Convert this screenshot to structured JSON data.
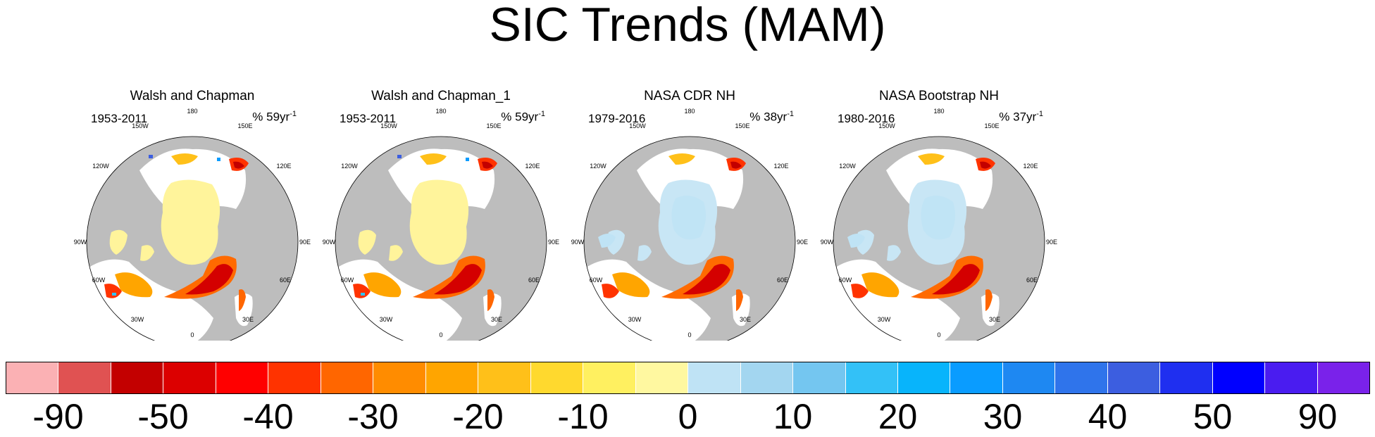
{
  "title": "SIC Trends (MAM)",
  "panels": [
    {
      "name": "Walsh and Chapman",
      "years": "1953-2011",
      "unit_prefix": "% 59yr",
      "unit_exp": "-1",
      "variant": "wc"
    },
    {
      "name": "Walsh and Chapman_1",
      "years": "1953-2011",
      "unit_prefix": "% 59yr",
      "unit_exp": "-1",
      "variant": "wc"
    },
    {
      "name": "NASA CDR NH",
      "years": "1979-2016",
      "unit_prefix": "% 38yr",
      "unit_exp": "-1",
      "variant": "sat"
    },
    {
      "name": "NASA Bootstrap NH",
      "years": "1980-2016",
      "unit_prefix": "% 37yr",
      "unit_exp": "-1",
      "variant": "sat"
    }
  ],
  "map_labels": {
    "lon_180": "180",
    "lon_150w": "150W",
    "lon_150e": "150E",
    "lon_120w": "120W",
    "lon_120e": "120E",
    "lon_90w": "90W",
    "lon_90e": "90E",
    "lon_60w": "60W",
    "lon_60e": "60E",
    "lon_30w": "30W",
    "lon_30e": "30E",
    "lon_0": "0"
  },
  "colorbar": {
    "colors": [
      "#fbb1b4",
      "#e05252",
      "#c30000",
      "#dc0000",
      "#ff0000",
      "#ff3300",
      "#ff6600",
      "#ff8c00",
      "#ffa500",
      "#ffc019",
      "#ffd92e",
      "#fff060",
      "#fff8a0",
      "#bfe3f5",
      "#a3d6f0",
      "#74c6f0",
      "#33c1f7",
      "#08b4fb",
      "#0a9cff",
      "#1e88f2",
      "#2f74eb",
      "#3c5ee0",
      "#1f2ff0",
      "#0000ff",
      "#4a1cf0",
      "#7a22ea"
    ],
    "labels": [
      "-90",
      "-50",
      "-40",
      "-30",
      "-20",
      "-10",
      "0",
      "10",
      "20",
      "30",
      "40",
      "50",
      "90"
    ]
  },
  "colors": {
    "land": "#bdbdbd",
    "ocean": "#ffffff",
    "ice_neutral_wc": "#fff49b",
    "ice_neutral_sat": "#c8e6f5"
  }
}
